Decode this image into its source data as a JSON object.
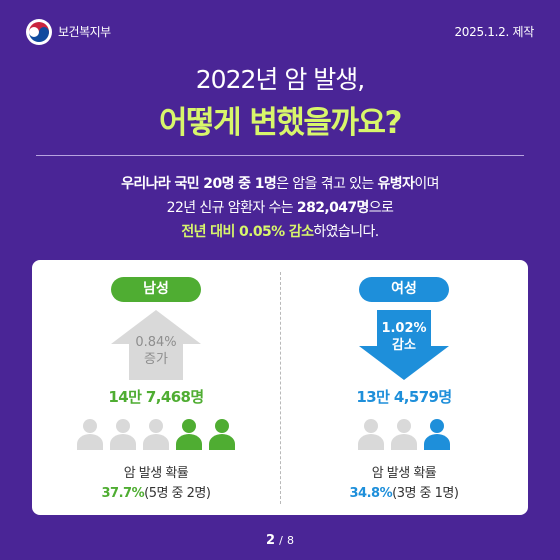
{
  "header": {
    "org": "보건복지부",
    "date": "2025.1.2. 제작",
    "logo_icon": "taegeuk-logo-icon"
  },
  "title": {
    "line1": "2022년 암 발생,",
    "line2": "어떻게 변했을까요?"
  },
  "intro": {
    "l1_bold": "우리나라 국민 20명 중 1명",
    "l1_mid": "은 암을 겪고 있는 ",
    "l1_bold2": "유병자",
    "l1_end": "이며",
    "l2_start": "22년 신규 암환자 수는 ",
    "l2_bold": "282,047명",
    "l2_end": "으로",
    "l3_hl": "전년 대비 0.05% 감소",
    "l3_end": "하였습니다."
  },
  "male": {
    "label": "남성",
    "change_value": "0.84%",
    "change_word": "증가",
    "count": "14만 7,468명",
    "prob_title": "암 발생 확률",
    "prob_pct": "37.7%",
    "prob_detail": "(5명 중 2명)",
    "people_highlighted": 2,
    "people_total": 5,
    "colors": {
      "accent": "#4fad32",
      "arrow": "#d9d9d9",
      "inactive": "#d9d9d9"
    }
  },
  "female": {
    "label": "여성",
    "change_value": "1.02%",
    "change_word": "감소",
    "count": "13만 4,579명",
    "prob_title": "암 발생 확률",
    "prob_pct": "34.8%",
    "prob_detail": "(3명 중 1명)",
    "people_highlighted": 1,
    "people_total": 3,
    "colors": {
      "accent": "#1e8fda",
      "arrow": "#1e8fda",
      "inactive": "#d9d9d9"
    }
  },
  "page": {
    "current": "2",
    "separator": "/",
    "total": "8"
  },
  "colors": {
    "background": "#4a2596",
    "highlight": "#d8f66b"
  }
}
